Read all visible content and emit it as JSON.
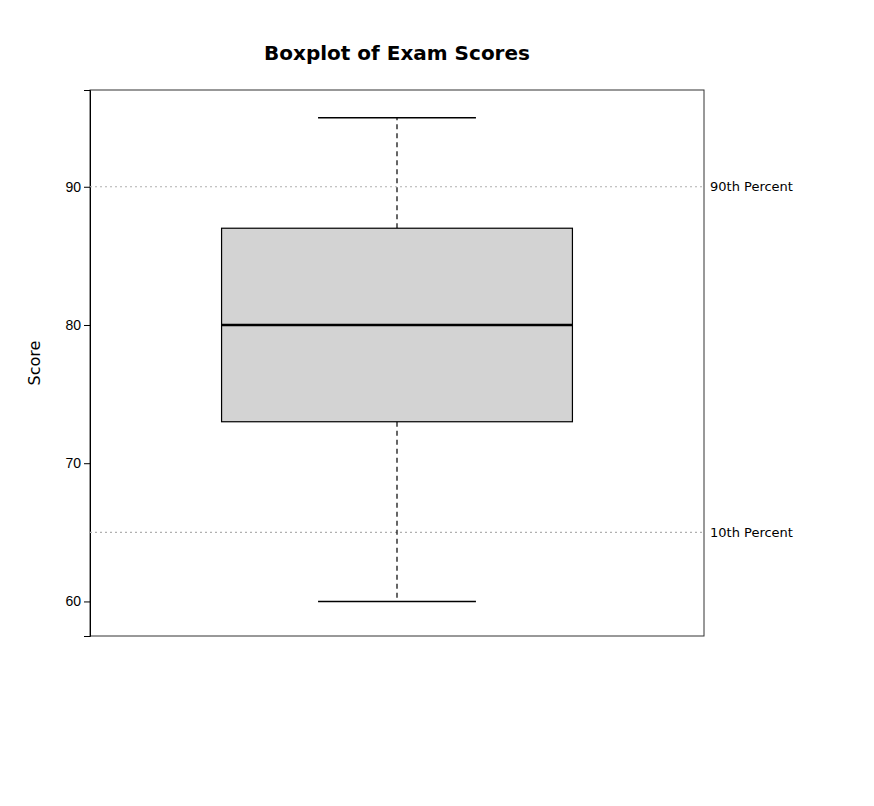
{
  "chart_data": {
    "type": "box",
    "title": "Boxplot of Exam Scores",
    "ylabel": "Score",
    "ylim": [
      57.5,
      97
    ],
    "yticks": [
      60,
      70,
      80,
      90
    ],
    "tick_labels": "y",
    "series": [
      {
        "color": "#d3d3d3",
        "low": 60,
        "q1": 73,
        "median": 80,
        "q3": 87,
        "high": 95
      }
    ],
    "annotations": [
      {
        "y": 90,
        "text": "90th Percent"
      },
      {
        "y": 65,
        "text": "10th Percent"
      }
    ]
  }
}
